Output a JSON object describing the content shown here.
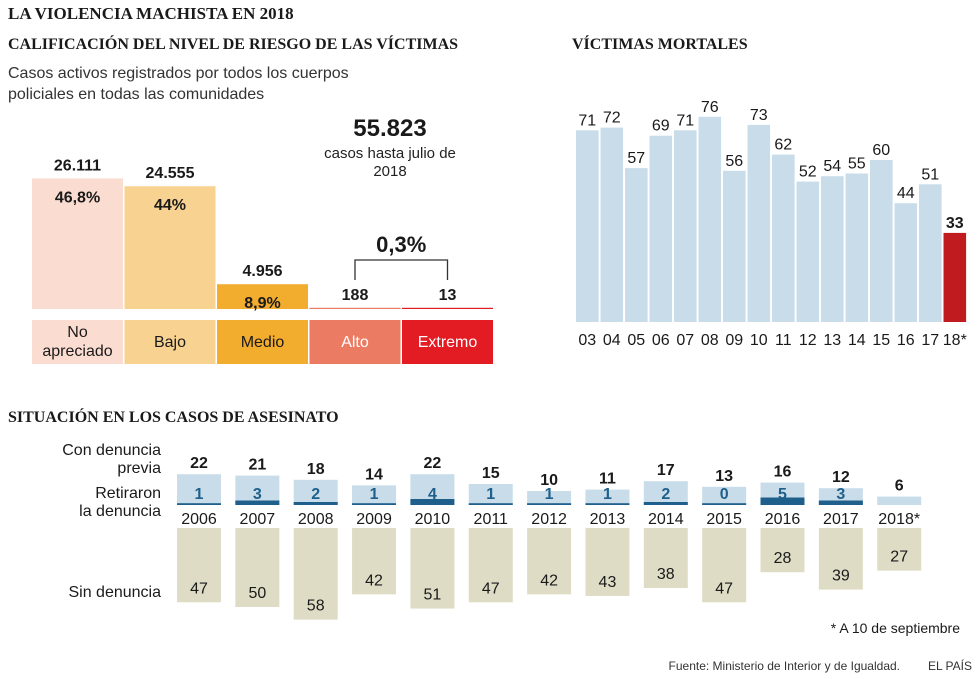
{
  "header": {
    "title": "LA VIOLENCIA MACHISTA EN 2018"
  },
  "risk_panel": {
    "title": "CALIFICACIÓN DEL NIVEL DE RIESGO DE LAS VÍCTIMAS",
    "subtitle": "Casos activos registrados por todos los cuerpos policiales en todas las comunidades",
    "total_value": "55.823",
    "total_label": "casos hasta julio de 2018",
    "bracket_label": "0,3%"
  },
  "deaths_panel": {
    "title": "VÍCTIMAS MORTALES"
  },
  "cases_panel": {
    "title": "SITUACIÓN EN LOS CASOS DE ASESINATO",
    "row_labels": {
      "complaint": "Con denuncia previa",
      "withdrew": "Retiraron la denuncia",
      "no_complaint": "Sin denuncia"
    },
    "footnote": "* A 10 de septiembre"
  },
  "footer": {
    "source": "Fuente: Ministerio de Interior y de Igualdad.",
    "brand": "EL PAÍS"
  },
  "colors": {
    "not_assessed": "#fbdcd1",
    "low": "#f8d291",
    "medium": "#f2ac2e",
    "high": "#ec7b63",
    "extreme": "#e31b23",
    "deaths_bar": "#c8dde9",
    "deaths_highlight": "#c01b1f",
    "complaint_fill": "#c8dde9",
    "withdrew_fill": "#1f5f8b",
    "no_complaint_fill": "#dfdcc6"
  },
  "chart_data": [
    {
      "type": "bar",
      "title": "CALIFICACIÓN DEL NIVEL DE RIESGO DE LAS VÍCTIMAS",
      "categories": [
        "No apreciado",
        "Bajo",
        "Medio",
        "Alto",
        "Extremo"
      ],
      "values": [
        26111,
        24555,
        4956,
        188,
        13
      ],
      "value_labels": [
        "26.111",
        "24.555",
        "4.956",
        "188",
        "13"
      ],
      "percent_labels": [
        "46,8%",
        "44%",
        "8,9%",
        "",
        ""
      ],
      "total": 55823
    },
    {
      "type": "bar",
      "title": "VÍCTIMAS MORTALES",
      "categories": [
        "03",
        "04",
        "05",
        "06",
        "07",
        "08",
        "09",
        "10",
        "11",
        "12",
        "13",
        "14",
        "15",
        "16",
        "17",
        "18*"
      ],
      "values": [
        71,
        72,
        57,
        69,
        71,
        76,
        56,
        73,
        62,
        52,
        54,
        55,
        60,
        44,
        51,
        33
      ]
    },
    {
      "type": "bar",
      "title": "SITUACIÓN EN LOS CASOS DE ASESINATO",
      "categories": [
        "2006",
        "2007",
        "2008",
        "2009",
        "2010",
        "2011",
        "2012",
        "2013",
        "2014",
        "2015",
        "2016",
        "2017",
        "2018*"
      ],
      "series": [
        {
          "name": "Con denuncia previa",
          "values": [
            22,
            21,
            18,
            14,
            22,
            15,
            10,
            11,
            17,
            13,
            16,
            12,
            6
          ]
        },
        {
          "name": "Retiraron la denuncia",
          "values": [
            1,
            3,
            2,
            1,
            4,
            1,
            1,
            1,
            2,
            0,
            5,
            3,
            null
          ]
        },
        {
          "name": "Sin denuncia",
          "values": [
            47,
            50,
            58,
            42,
            51,
            47,
            42,
            43,
            38,
            47,
            28,
            39,
            27
          ]
        }
      ]
    }
  ]
}
